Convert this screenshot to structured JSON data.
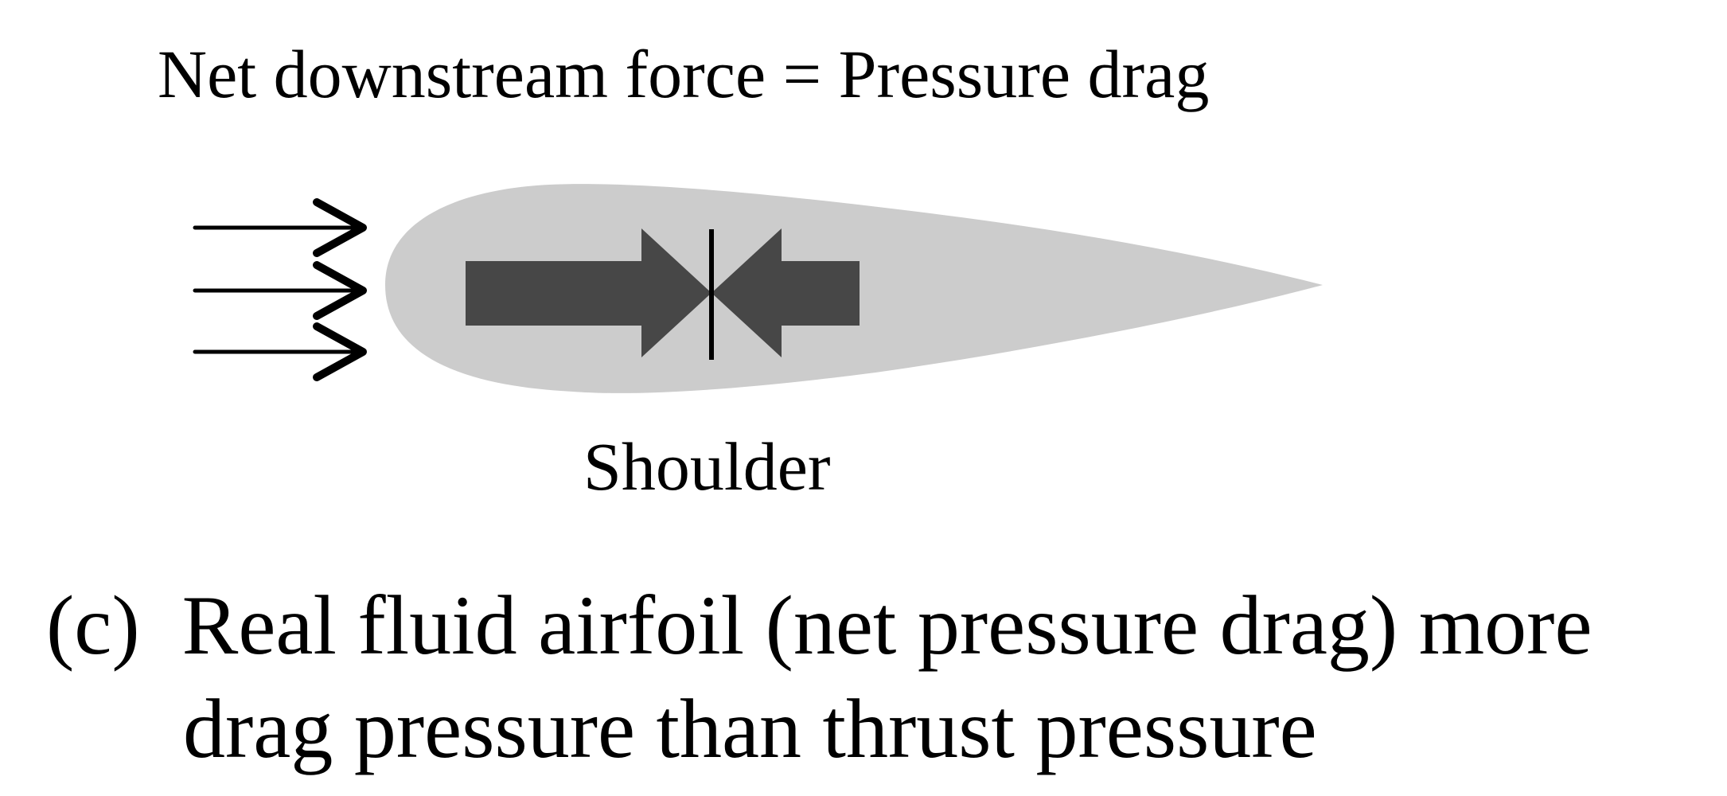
{
  "title": "Net downstream force = Pressure drag",
  "shoulder_label": "Shoulder",
  "caption": {
    "line1": "(c)  Real fluid airfoil (net pressure drag) more",
    "line2": "drag pressure than thrust pressure"
  },
  "colors": {
    "airfoil": "#cccccc",
    "pressure_arrows": "#474747",
    "lines": "#000000"
  }
}
